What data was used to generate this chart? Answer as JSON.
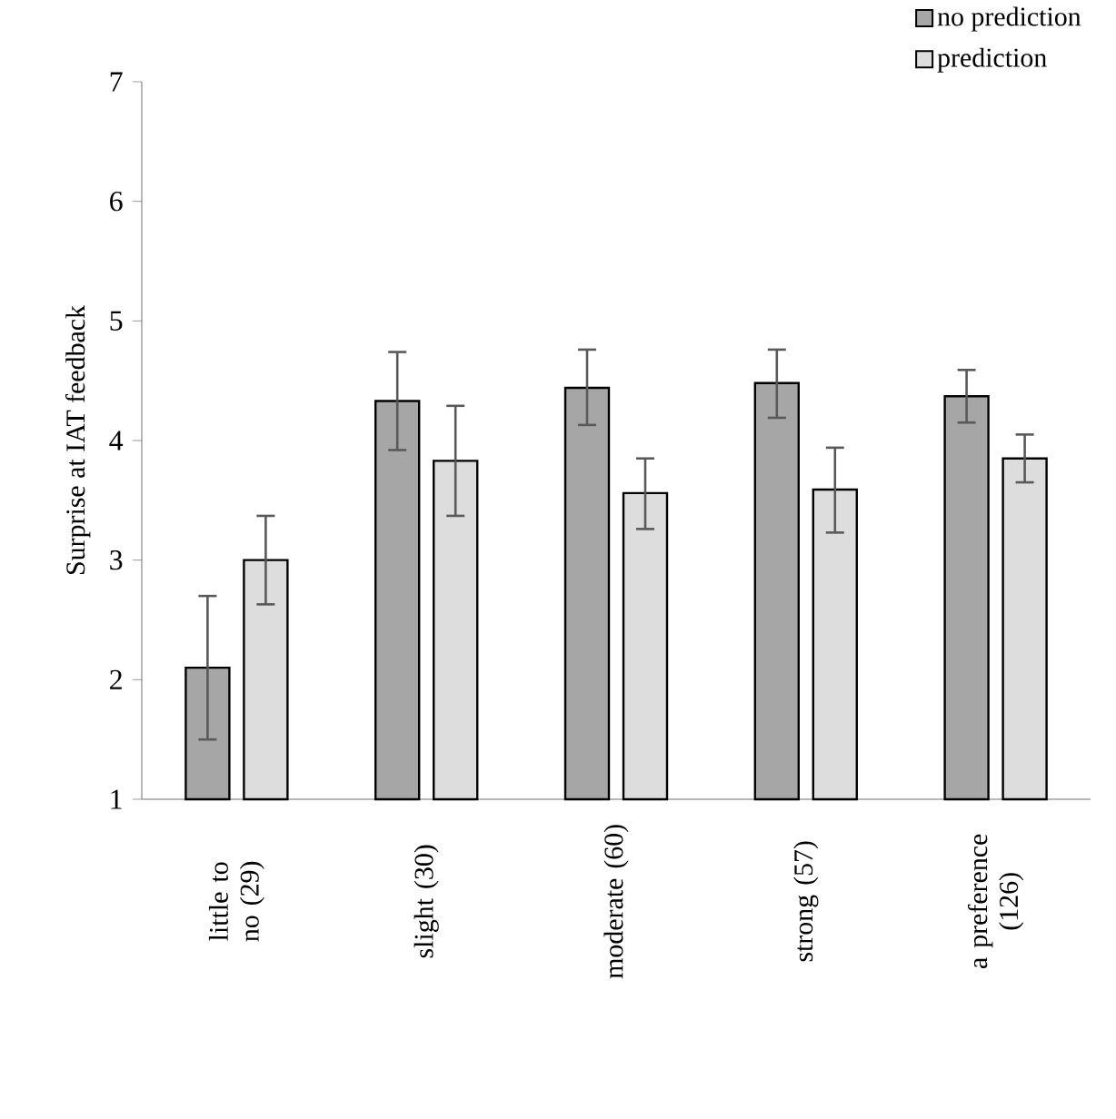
{
  "chart_data": {
    "type": "bar",
    "ylabel": "Surprise at IAT feedback",
    "categories": [
      "little to no (29)",
      "slight (30)",
      "moderate (60)",
      "strong (57)",
      "a preference (126)"
    ],
    "series": [
      {
        "name": "no prediction",
        "color": "#a6a6a6",
        "values": [
          2.1,
          4.33,
          4.44,
          4.48,
          4.37
        ],
        "errors": [
          [
            1.5,
            2.7
          ],
          [
            3.92,
            4.74
          ],
          [
            4.13,
            4.76
          ],
          [
            4.19,
            4.76
          ],
          [
            4.15,
            4.59
          ]
        ]
      },
      {
        "name": "prediction",
        "color": "#dddddd",
        "values": [
          3.0,
          3.83,
          3.56,
          3.59,
          3.85
        ],
        "errors": [
          [
            2.63,
            3.37
          ],
          [
            3.37,
            4.29
          ],
          [
            3.26,
            3.85
          ],
          [
            3.23,
            3.94
          ],
          [
            3.65,
            4.05
          ]
        ]
      }
    ],
    "ylim": [
      1,
      7
    ],
    "yticks": [
      1,
      2,
      3,
      4,
      5,
      6,
      7
    ],
    "grid": false,
    "legend": "top right"
  }
}
